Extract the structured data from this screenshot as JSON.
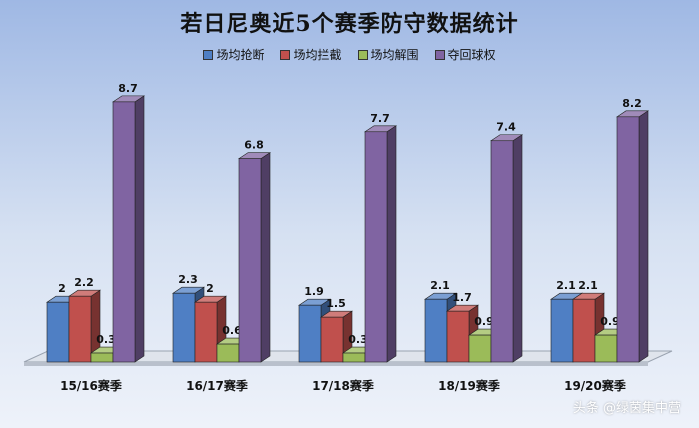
{
  "chart_data": {
    "type": "bar",
    "title": "若日尼奥近5个赛季防守数据统计",
    "categories": [
      "15/16赛季",
      "16/17赛季",
      "17/18赛季",
      "18/19赛季",
      "19/20赛季"
    ],
    "series": [
      {
        "name": "场均抢断",
        "color": "#4f7fc4",
        "values": [
          2,
          2.3,
          1.9,
          2.1,
          2.1
        ]
      },
      {
        "name": "场均拦截",
        "color": "#c0504d",
        "values": [
          2.2,
          2,
          1.5,
          1.7,
          2.1
        ]
      },
      {
        "name": "场均解围",
        "color": "#9bbb59",
        "values": [
          0.3,
          0.6,
          0.3,
          0.9,
          0.9
        ]
      },
      {
        "name": "夺回球权",
        "color": "#8064a2",
        "values": [
          8.7,
          6.8,
          7.7,
          7.4,
          8.2
        ]
      }
    ],
    "ylim": [
      0,
      9
    ],
    "grid": false,
    "legend": "top",
    "xlabel": "",
    "ylabel": ""
  },
  "watermark": "头条 @绿茵集中营"
}
